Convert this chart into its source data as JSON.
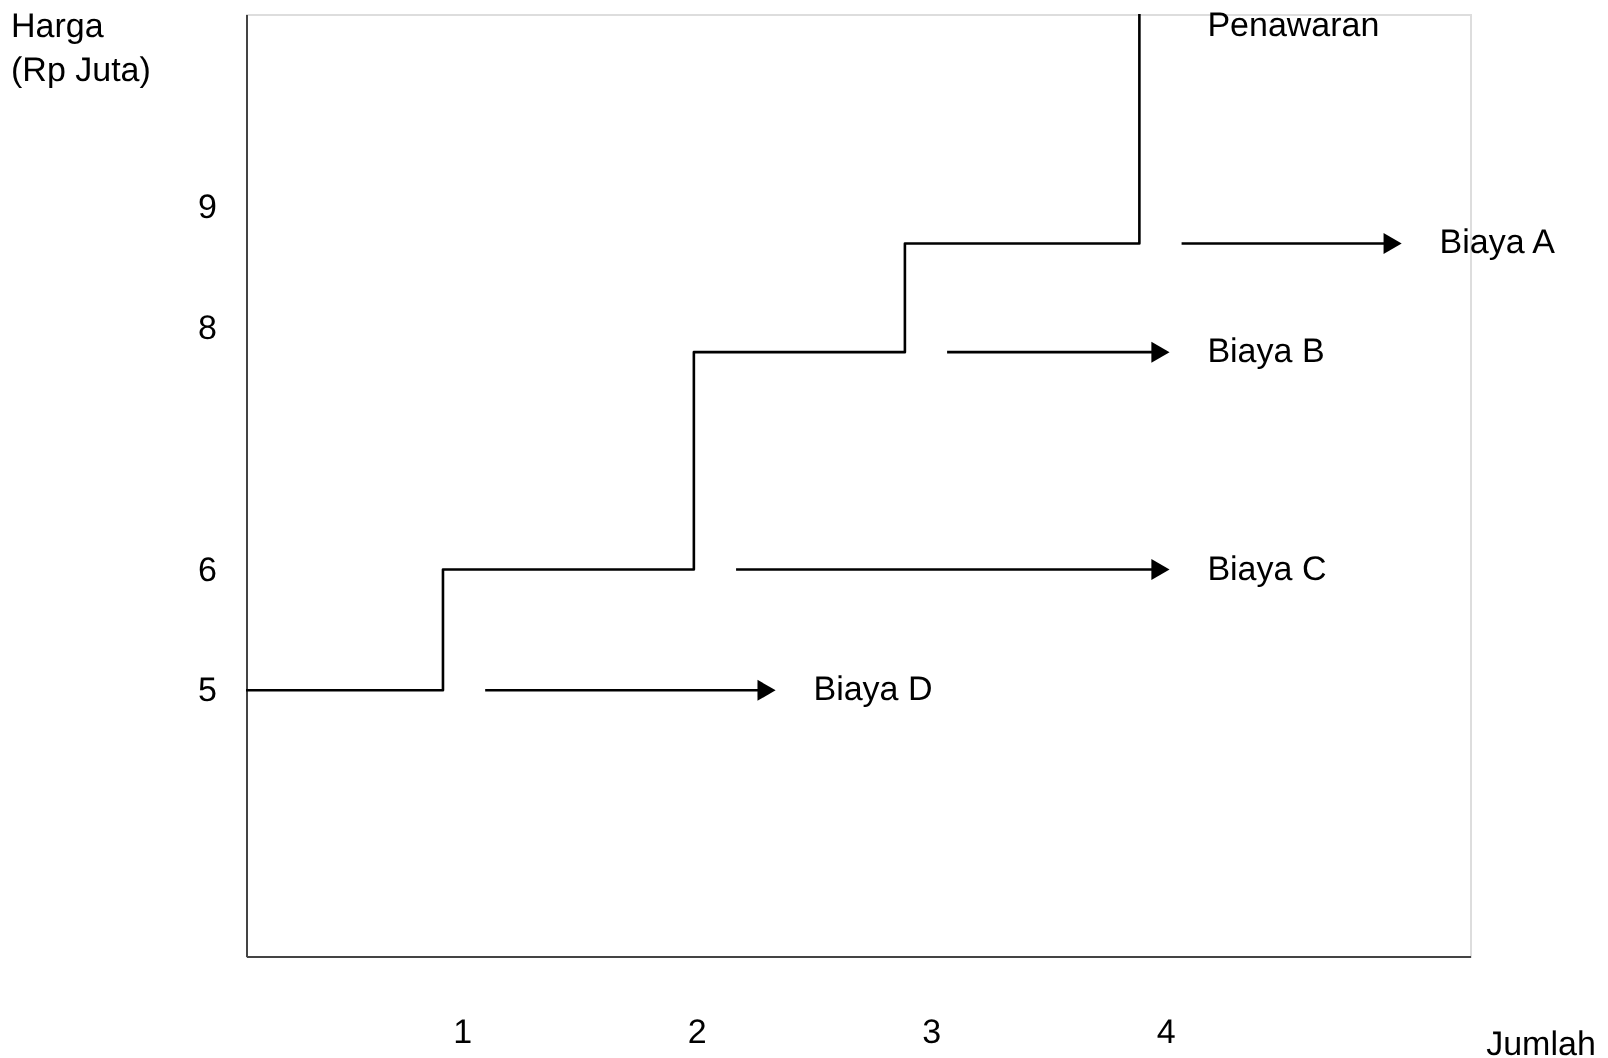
{
  "chart_data": {
    "type": "step",
    "xlabel": "Jumlah",
    "ylabel": "Harga (Rp Juta)",
    "x": [
      0.08,
      0.92,
      1.99,
      2.89,
      3.89
    ],
    "series": [
      {
        "color": "#000000",
        "values": [
          5,
          6,
          7.8,
          8.7,
          10.6
        ]
      }
    ],
    "xlim": [
      0.08,
      5.3
    ],
    "xticks": [
      1,
      2,
      3,
      4
    ],
    "ylim": [
      2.8,
      10.6
    ],
    "yticks": [
      5,
      6,
      8,
      9
    ],
    "grid": false,
    "annotations": [
      "Penawaran",
      "Biaya A",
      "Biaya B",
      "Biaya C",
      "Biaya D"
    ]
  }
}
